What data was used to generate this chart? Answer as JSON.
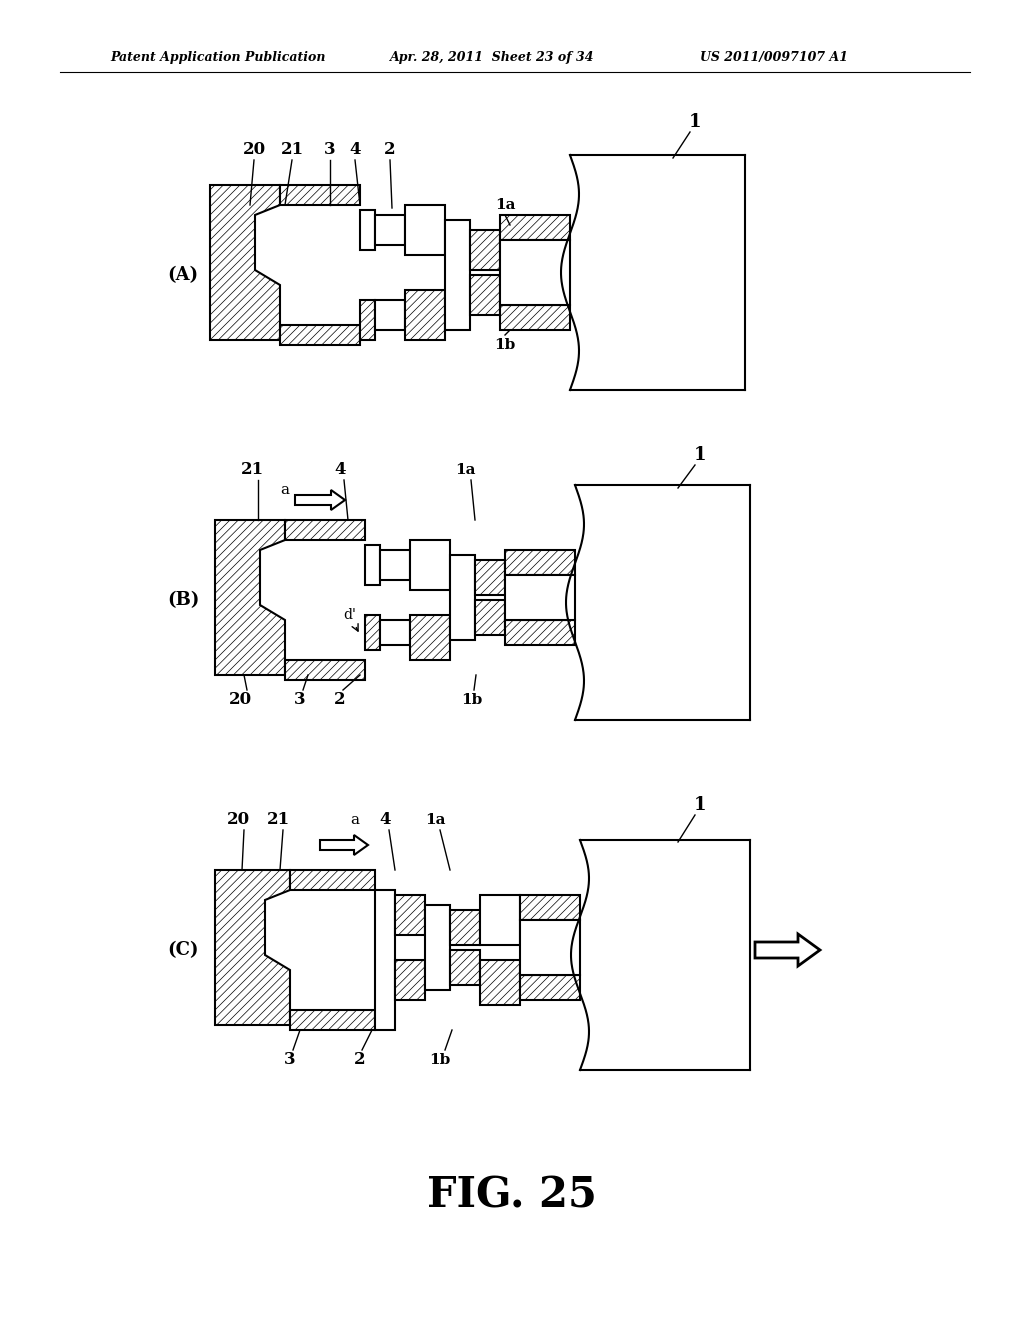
{
  "background_color": "#ffffff",
  "header_left": "Patent Application Publication",
  "header_mid": "Apr. 28, 2011  Sheet 23 of 34",
  "header_right": "US 2011/0097107 A1",
  "figure_label": "FIG. 25",
  "line_width": 1.5,
  "hatch_lw": 0.5
}
